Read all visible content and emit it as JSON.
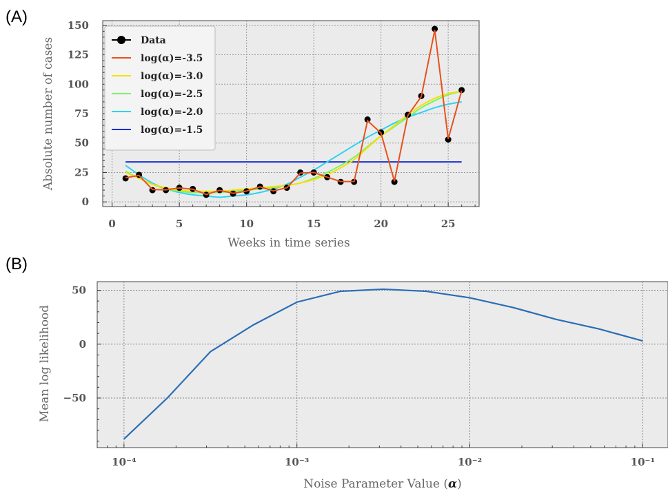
{
  "chart_data": [
    {
      "panel": "(A)",
      "type": "line",
      "xlabel": "Weeks in time series",
      "ylabel": "Absolute number of cases",
      "xlim": [
        -0.7,
        27.3
      ],
      "ylim": [
        -4,
        154
      ],
      "xticks": [
        "0",
        "5",
        "10",
        "15",
        "20",
        "25"
      ],
      "yticks": [
        "0",
        "25",
        "50",
        "75",
        "100",
        "125",
        "150"
      ],
      "grid": true,
      "legend_position": "top-left",
      "data": {
        "name": "Data",
        "color": "#000000",
        "x": [
          1,
          2,
          3,
          4,
          5,
          6,
          7,
          8,
          9,
          10,
          11,
          12,
          13,
          14,
          15,
          16,
          17,
          18,
          19,
          20,
          21,
          22,
          23,
          24,
          25,
          26
        ],
        "y": [
          20,
          23,
          10,
          10,
          12,
          11,
          6,
          10,
          7,
          9,
          13,
          9,
          12,
          25,
          25,
          21,
          17,
          17,
          70,
          59,
          17,
          74,
          90,
          147,
          53,
          95
        ]
      },
      "series": [
        {
          "name": "log(α)=-3.5",
          "color": "#e8501a",
          "x": [
            1,
            2,
            3,
            4,
            5,
            6,
            7,
            8,
            9,
            10,
            11,
            12,
            13,
            14,
            15,
            16,
            17,
            18,
            19,
            20,
            21,
            22,
            23,
            24,
            25,
            26
          ],
          "y": [
            20.5,
            22.5,
            10.5,
            10.3,
            11.8,
            10.8,
            6.3,
            9.8,
            7.3,
            9.2,
            12.8,
            9.3,
            12,
            24.5,
            25,
            21,
            17.3,
            17.3,
            69,
            58.5,
            17.5,
            73.5,
            89.5,
            146,
            53.5,
            94.5
          ]
        },
        {
          "name": "log(α)=-3.0",
          "color": "#f5e000",
          "x": [
            1,
            2,
            3,
            4,
            5,
            6,
            7,
            8,
            9,
            10,
            11,
            12,
            13,
            14,
            15,
            16,
            17,
            18,
            19,
            20,
            21,
            22,
            23,
            24,
            25,
            26
          ],
          "y": [
            25,
            20,
            15,
            12,
            10,
            9,
            9,
            9,
            10,
            11,
            12,
            13,
            14,
            16,
            19,
            23,
            29,
            36,
            46,
            56,
            65,
            74,
            82,
            88,
            92,
            94
          ]
        },
        {
          "name": "log(α)=-2.5",
          "color": "#7cf26a",
          "x": [
            1,
            2,
            3,
            4,
            5,
            6,
            7,
            8,
            9,
            10,
            11,
            12,
            13,
            14,
            15,
            16,
            17,
            18,
            19,
            20,
            21,
            22,
            23,
            24,
            25,
            26
          ],
          "y": [
            26,
            20,
            15,
            11,
            9,
            8,
            8,
            8,
            9,
            10,
            11,
            12,
            14,
            16,
            20,
            25,
            31,
            38,
            47,
            56,
            64,
            72,
            80,
            86,
            91,
            94
          ]
        },
        {
          "name": "log(α)=-2.0",
          "color": "#2bd4f0",
          "x": [
            1,
            2,
            3,
            4,
            5,
            6,
            7,
            8,
            9,
            10,
            11,
            12,
            13,
            14,
            15,
            16,
            17,
            18,
            19,
            20,
            21,
            22,
            23,
            24,
            25,
            26
          ],
          "y": [
            31,
            23,
            16,
            11,
            8,
            6,
            5,
            4,
            5,
            6,
            8,
            11,
            15,
            21,
            27,
            34,
            41,
            48,
            55,
            61,
            67,
            72,
            76,
            80,
            83,
            85
          ]
        },
        {
          "name": "log(α)=-1.5",
          "color": "#1a2fd6",
          "x": [
            1,
            26
          ],
          "y": [
            34,
            34
          ]
        }
      ]
    },
    {
      "panel": "(B)",
      "type": "line",
      "xlabel": "Noise Parameter Value (α)",
      "ylabel": "Mean log likelihood",
      "xscale": "log",
      "xlim": [
        7e-05,
        0.14
      ],
      "ylim": [
        -96,
        58
      ],
      "xticks": [
        "10⁻⁴",
        "10⁻³",
        "10⁻²",
        "10⁻¹"
      ],
      "yticks": [
        "−50",
        "0",
        "50"
      ],
      "grid": true,
      "series": [
        {
          "color": "#2a6db5",
          "x": [
            0.0001,
            0.000178,
            0.000316,
            0.000562,
            0.001,
            0.00178,
            0.00316,
            0.00562,
            0.01,
            0.0178,
            0.0316,
            0.0562,
            0.1
          ],
          "y": [
            -88,
            -50,
            -7,
            18,
            39,
            49,
            51,
            49,
            43,
            34,
            23,
            14,
            3
          ]
        }
      ]
    }
  ]
}
